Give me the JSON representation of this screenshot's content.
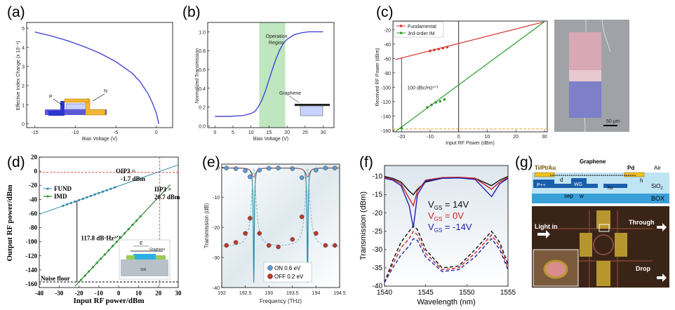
{
  "colors": {
    "blue_curve": "#3b3bd6",
    "red": "#d8342a",
    "green": "#2a9a2a",
    "teal": "#2a8aa8",
    "dark_green": "#106010",
    "op_region": "#bfe6bf",
    "e_on": "#5b9bd5",
    "e_off": "#c0392b",
    "navy": "#1a1a8c"
  },
  "panel_labels": {
    "a": "(a)",
    "b": "(b)",
    "c": "(c)",
    "d": "(d)",
    "e": "(e)",
    "f": "(f)",
    "g": "(g)"
  },
  "chart_data": [
    {
      "id": "a",
      "type": "line",
      "xlabel": "Bias Voltage (V)",
      "ylabel": "Effective Index Change (x 10⁻⁴)",
      "xlim": [
        -16,
        2
      ],
      "ylim": [
        -0.2,
        5.3
      ],
      "xticks": [
        -15,
        -10,
        -5,
        0
      ],
      "xtick_labels": [
        "-15",
        "-10",
        "-5",
        "0"
      ],
      "yticks": [
        0,
        1,
        2,
        3,
        4,
        5
      ],
      "ytick_labels": [
        "0",
        "1",
        "2",
        "3",
        "4",
        "5"
      ],
      "x": [
        -15,
        -13,
        -11,
        -9,
        -7,
        -5,
        -3,
        -2,
        -1,
        -0.5,
        0,
        0.3
      ],
      "y": [
        4.8,
        4.6,
        4.35,
        4.05,
        3.7,
        3.25,
        2.65,
        2.2,
        1.55,
        1.1,
        0.55,
        0.0
      ],
      "annotations": {
        "p": "P",
        "n": "N"
      }
    },
    {
      "id": "b",
      "type": "line",
      "xlabel": "Bias Voltage (V)",
      "ylabel": "Normalized Transmission",
      "xlim": [
        -2,
        33
      ],
      "ylim": [
        -0.02,
        1.1
      ],
      "xticks": [
        0,
        5,
        10,
        15,
        20,
        25,
        30
      ],
      "xtick_labels": [
        "0",
        "5",
        "10",
        "15",
        "20",
        "25",
        "30"
      ],
      "yticks": [
        0.0,
        0.2,
        0.4,
        0.6,
        0.8,
        1.0
      ],
      "ytick_labels": [
        "0.0",
        "0.2",
        "0.4",
        "0.6",
        "0.8",
        "1.0"
      ],
      "x": [
        0,
        2,
        4,
        6,
        8,
        10,
        11,
        12,
        13,
        14,
        15,
        16,
        17,
        18,
        19,
        20,
        22,
        24,
        26,
        28,
        30
      ],
      "y": [
        0.1,
        0.1,
        0.1,
        0.105,
        0.11,
        0.13,
        0.15,
        0.2,
        0.27,
        0.37,
        0.49,
        0.61,
        0.72,
        0.81,
        0.88,
        0.92,
        0.97,
        0.99,
        1.0,
        1.0,
        1.0
      ],
      "region": {
        "x0": 12.3,
        "x1": 19.5,
        "label": [
          "Operation",
          "Region"
        ]
      },
      "annotations": {
        "graphene": "Graphene"
      }
    },
    {
      "id": "c",
      "type": "line",
      "xlabel": "Input RF Power (dBm)",
      "ylabel": "Received RF Power (dBm)",
      "xlim": [
        -23,
        31
      ],
      "ylim": [
        -162,
        -8
      ],
      "xticks": [
        -20,
        -10,
        0,
        10,
        20,
        30
      ],
      "xtick_labels": [
        "-20",
        "-10",
        "0",
        "10",
        "20",
        "30"
      ],
      "yticks": [
        -160,
        -140,
        -120,
        -100,
        -80,
        -60,
        -40,
        -20
      ],
      "ytick_labels": [
        "-160",
        "-140",
        "-120",
        "-100",
        "-80",
        "-60",
        "-40",
        "-20"
      ],
      "series": [
        {
          "name": "Fundamental",
          "line_x": [
            -22,
            30
          ],
          "line_y": [
            -61.4,
            -9
          ],
          "points_x": [
            -10,
            -8.5,
            -7,
            -5.5,
            -4
          ],
          "points_y": [
            -49.5,
            -48.2,
            -47,
            -45.6,
            -44.2
          ]
        },
        {
          "name": "3rd-order IM",
          "line_x": [
            -22,
            30
          ],
          "line_y": [
            -161.1,
            -9
          ],
          "points_x": [
            -11,
            -9.5,
            -8,
            -6.5,
            -5,
            -20
          ],
          "points_y": [
            -128,
            -124.5,
            -121,
            -119.5,
            -117,
            -157
          ]
        }
      ],
      "noise_floor": -158,
      "annotation": "100 dBc/Hz²ᐟ³",
      "scale_bar": "50 μm"
    },
    {
      "id": "d",
      "type": "line",
      "xlabel": "Input RF power/dBm",
      "ylabel": "Output RF power/dBm",
      "xlim": [
        -40,
        30
      ],
      "ylim": [
        -165,
        20
      ],
      "xticks": [
        -40,
        -30,
        -20,
        -10,
        0,
        10,
        20,
        30
      ],
      "xtick_labels": [
        "-40",
        "-30",
        "-20",
        "-10",
        "0",
        "10",
        "20",
        "30"
      ],
      "yticks": [
        -160,
        -140,
        -120,
        -100,
        -80,
        -60,
        -40,
        -20,
        0,
        20
      ],
      "ytick_labels": [
        "-160",
        "-140",
        "-120",
        "-100",
        "-80",
        "-60",
        "-40",
        "-20",
        "0",
        "20"
      ],
      "series": [
        {
          "name": "FUND",
          "line_x": [
            -40,
            30
          ],
          "line_y": [
            -61,
            9
          ],
          "points_x": [
            -28,
            -26,
            -24,
            -22,
            -20,
            -18,
            -16,
            -14,
            -12,
            -10,
            -8,
            -6,
            -4,
            -2
          ],
          "points_y": [
            -49,
            -47,
            -45,
            -43,
            -41,
            -39,
            -37,
            -35,
            -33,
            -31,
            -29,
            -27,
            -25,
            -23
          ]
        },
        {
          "name": "IMD",
          "line_x": [
            -22,
            26
          ],
          "line_y": [
            -163.1,
            -19.1
          ],
          "points_x": [
            -19,
            -17,
            -15,
            -13,
            -11,
            -9,
            -7,
            -5,
            -3,
            -1,
            1,
            3,
            5,
            7,
            9,
            11
          ],
          "points_y": [
            -154.1,
            -148.1,
            -142.1,
            -136.1,
            -130.1,
            -124.1,
            -118.1,
            -112.1,
            -106.1,
            -100.1,
            -94.1,
            -88.1,
            -82.1,
            -76.1,
            -70.1,
            -64.1
          ]
        }
      ],
      "oip3_label": "OIP3 =",
      "oip3_value": "-1.7 dBm",
      "iip3_label": "IIP3 =",
      "iip3_value": "20.7 dBm",
      "sfdr_label": "117.8 dB·Hz²ᐟ³",
      "noise_floor_label": "Noise floor",
      "inset_labels": {
        "e": "E",
        "graphene": "Graphene",
        "sin": "SiN"
      }
    },
    {
      "id": "e",
      "type": "line",
      "xlabel": "Frequency (THz)",
      "ylabel": "Transmission (dB)",
      "xlim": [
        192,
        194.5
      ],
      "ylim": [
        -40,
        1
      ],
      "xticks": [
        192,
        192.5,
        193,
        193.5,
        194,
        194.5
      ],
      "xtick_labels": [
        "192",
        "192.5",
        "193",
        "193.5",
        "194",
        "194.5"
      ],
      "yticks": [
        0,
        -10,
        -20,
        -30,
        -40
      ],
      "ytick_labels": [
        "0",
        "-10",
        "-20",
        "-30",
        "-40"
      ],
      "series": [
        {
          "name": "ON 0.6 eV",
          "points_x": [
            192.1,
            192.3,
            192.5,
            192.6,
            192.8,
            193.0,
            193.2,
            193.5,
            193.7,
            194.0,
            194.2,
            194.4
          ],
          "points_y": [
            -0.3,
            -0.5,
            -1.2,
            -3.2,
            -1.0,
            -0.4,
            -0.3,
            -0.5,
            -3.5,
            -1.0,
            -0.3,
            -0.3
          ]
        },
        {
          "name": "OFF 0.2 eV",
          "points_x": [
            192.1,
            192.3,
            192.5,
            192.6,
            192.8,
            193.0,
            193.2,
            193.5,
            193.7,
            194.0,
            194.2,
            194.4
          ],
          "points_y": [
            -26,
            -25,
            -22,
            -17,
            -22,
            -26,
            -26.5,
            -24,
            -16.5,
            -22,
            -26,
            -26
          ]
        }
      ]
    },
    {
      "id": "f",
      "type": "line",
      "xlabel": "Wavelength (nm)",
      "ylabel": "Transmission (dBm)",
      "xlim": [
        1540,
        1555
      ],
      "ylim": [
        -40,
        -7
      ],
      "xticks": [
        1540,
        1545,
        1550,
        1555
      ],
      "xtick_labels": [
        "1540",
        "1545",
        "1550",
        "1555"
      ],
      "yticks": [
        -10,
        -15,
        -20,
        -25,
        -30,
        -35,
        -40
      ],
      "ytick_labels": [
        "-10",
        "-15",
        "-20",
        "-25",
        "-30",
        "-35",
        "-40"
      ],
      "series": [
        {
          "name": "V_GS = 14V",
          "color": "#111",
          "lambda_x": [
            1540,
            1541,
            1542,
            1543,
            1543.5,
            1544,
            1545,
            1547,
            1549,
            1551,
            1553,
            1554,
            1555
          ],
          "through_y": [
            -10,
            -10.5,
            -11.5,
            -14,
            -15,
            -13.5,
            -11.5,
            -10.5,
            -10.3,
            -10.5,
            -12.5,
            -11,
            -10
          ],
          "drop_y": [
            -39,
            -33,
            -28,
            -25,
            -23.5,
            -24.5,
            -30,
            -35,
            -34.5,
            -30,
            -25,
            -28,
            -34
          ]
        },
        {
          "name": "V_GS = 0V",
          "color": "#d02020",
          "lambda_x": [
            1540,
            1541,
            1542,
            1543,
            1543.5,
            1544,
            1545,
            1547,
            1549,
            1551,
            1553,
            1554,
            1555
          ],
          "through_y": [
            -10.3,
            -10.8,
            -12,
            -16,
            -18,
            -14,
            -11,
            -10.3,
            -10.2,
            -10.5,
            -13.5,
            -11.5,
            -10.3
          ],
          "drop_y": [
            -39,
            -34,
            -29.5,
            -27,
            -25,
            -26,
            -31,
            -35.5,
            -35,
            -31,
            -26,
            -29,
            -35
          ]
        },
        {
          "name": "V_GS = -14V",
          "color": "#2020b0",
          "lambda_x": [
            1540,
            1541,
            1542,
            1543,
            1543.5,
            1544,
            1545,
            1547,
            1549,
            1551,
            1553,
            1554,
            1555
          ],
          "through_y": [
            -10.5,
            -11,
            -12.5,
            -18,
            -24,
            -15,
            -11.2,
            -10.5,
            -10.4,
            -10.8,
            -15.5,
            -12,
            -10.5
          ],
          "drop_y": [
            -39,
            -35,
            -31.5,
            -29,
            -27,
            -27.5,
            -32,
            -36,
            -35.5,
            -32,
            -27,
            -30,
            -35.5
          ]
        }
      ],
      "legend_labels": [
        "V",
        "GS",
        " = 14V",
        "V",
        "GS",
        " = 0V",
        "V",
        "GS",
        " = -14V"
      ]
    }
  ],
  "panel_g": {
    "labels": {
      "ti_pt_au": "Ti/Pt/Au",
      "graphene": "Graphene",
      "pd": "Pd",
      "air": "Air",
      "d": "d",
      "wg": "WG",
      "p_pp": "P++",
      "hs": "hs",
      "h": "h",
      "sep": "sep",
      "w": "w",
      "sio2": "SiO",
      "sio2_sub": "2",
      "box": "BOX",
      "light_in": "Light in",
      "through": "Through",
      "drop": "Drop"
    }
  }
}
